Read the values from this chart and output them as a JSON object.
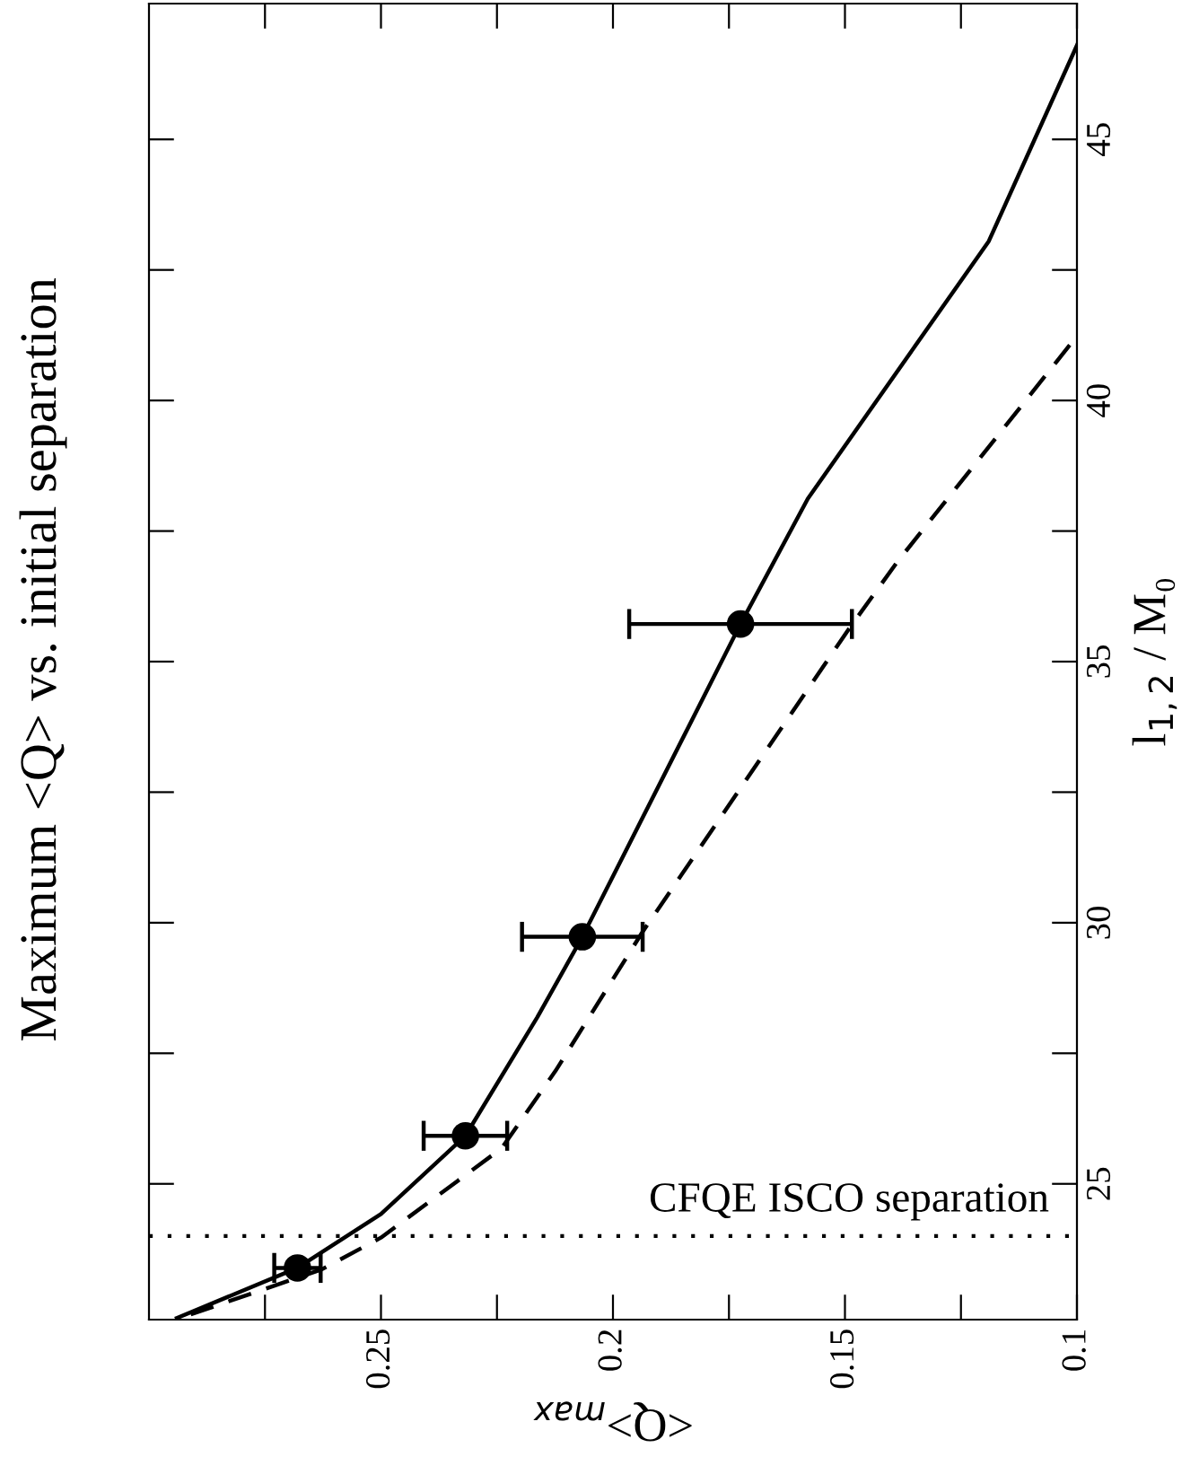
{
  "chart_data": {
    "type": "line",
    "title": "Maximum <Q> vs. initial separation",
    "xlabel": "<Q>$_{max}$",
    "ylabel": "l$_{1,2}$ / M₀",
    "xlim": [
      0.3,
      0.1
    ],
    "xticks": [
      {
        "value": 0.275,
        "label": null
      },
      0.25,
      {
        "value": 0.225,
        "label": null
      },
      0.2,
      {
        "value": 0.175,
        "label": null
      },
      0.15,
      {
        "value": 0.125,
        "label": null
      },
      0.1
    ],
    "ylim": [
      22.4,
      47.6
    ],
    "yticks": [
      25,
      {
        "value": 27.5,
        "label": null
      },
      30,
      {
        "value": 32.5,
        "label": null
      },
      35,
      {
        "value": 37.5,
        "label": null
      },
      40,
      {
        "value": 42.5,
        "label": null
      },
      45
    ],
    "grid": false,
    "legend": false,
    "series": [
      {
        "line_style": "solid",
        "marker": "none",
        "color": "#000000",
        "x": [
          0.294,
          0.268,
          0.25,
          0.2318,
          0.2163,
          0.2066,
          0.1725,
          0.158,
          0.119,
          0.1
        ],
        "values": [
          22.43,
          23.39,
          24.42,
          25.92,
          28.19,
          29.73,
          35.72,
          38.12,
          43.05,
          46.8
        ]
      },
      {
        "line_style": "dashed",
        "marker": "none",
        "color": "#000000",
        "x": [
          0.291,
          0.2628,
          0.25,
          0.224,
          0.2124,
          0.1938,
          0.1492,
          0.1388,
          0.1012,
          0.1
        ],
        "values": [
          22.5,
          23.36,
          23.97,
          25.68,
          27.16,
          29.8,
          35.62,
          36.9,
          41.1,
          41.2
        ]
      },
      {
        "type": "scatter",
        "marker": "circle",
        "color": "#000000",
        "x": [
          0.268,
          0.2318,
          0.2066,
          0.1725
        ],
        "values": [
          23.39,
          25.92,
          29.73,
          35.72
        ],
        "xerrors": [
          0.005,
          0.009,
          0.013,
          0.024
        ]
      }
    ],
    "ref_lines": [
      {
        "axis": "y",
        "value": 24,
        "label": "CFQE ISCO separation",
        "line_style": "dotted",
        "color": "#000000"
      }
    ]
  }
}
